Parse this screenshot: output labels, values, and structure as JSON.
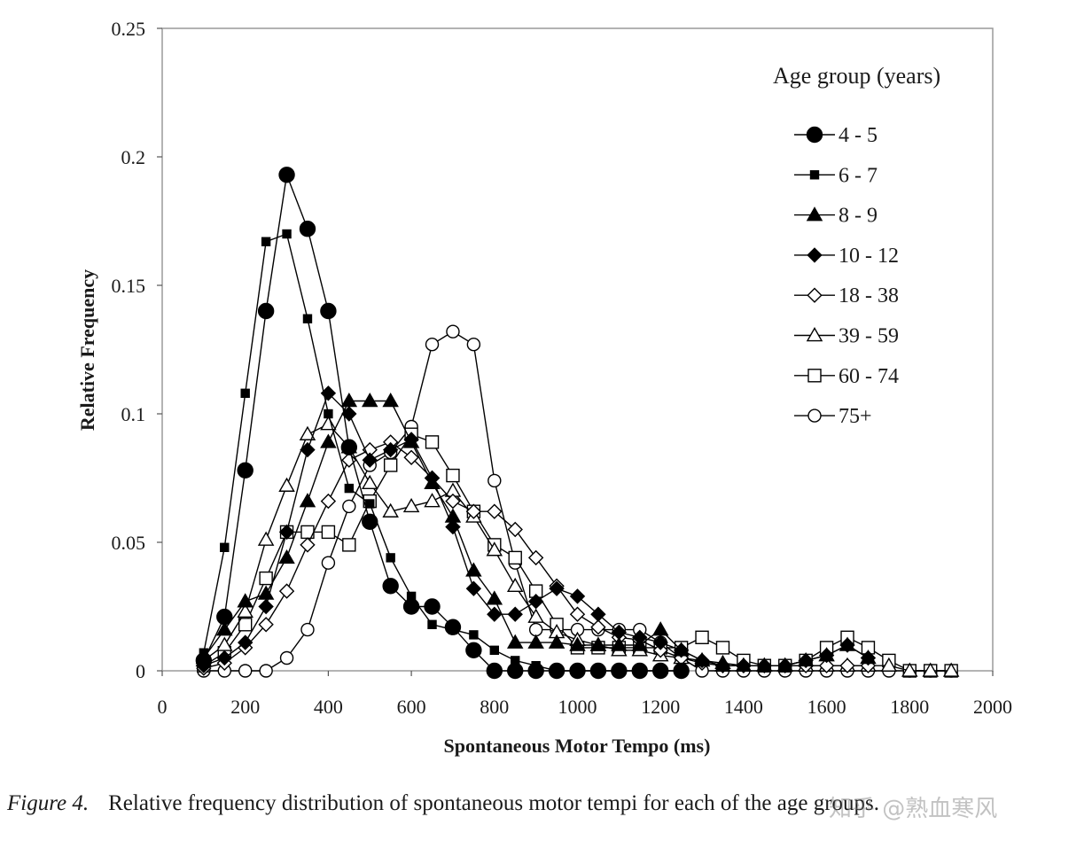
{
  "chart_data": {
    "type": "line",
    "title": "",
    "xlabel": "Spontaneous Motor Tempo (ms)",
    "ylabel": "Relative Frequency",
    "xlim": [
      0,
      2000
    ],
    "ylim": [
      0,
      0.25
    ],
    "xticks": [
      0,
      200,
      400,
      600,
      800,
      1000,
      1200,
      1400,
      1600,
      1800,
      2000
    ],
    "xtick_labels": [
      "0",
      "200",
      "400",
      "600",
      "800",
      "1000",
      "1200",
      "1400",
      "1600",
      "1800",
      "2000"
    ],
    "yticks": [
      0,
      0.05,
      0.1,
      0.15,
      0.2,
      0.25
    ],
    "ytick_labels": [
      "0",
      "0.05",
      "0.1",
      "0.15",
      "0.2",
      "0.25"
    ],
    "grid": false,
    "legend_title": "Age group (years)",
    "legend_position": "top-right",
    "series": [
      {
        "name": "4 - 5",
        "marker": "circle",
        "fill": "filled",
        "size": "large",
        "x": [
          100,
          150,
          200,
          250,
          300,
          350,
          400,
          450,
          500,
          550,
          600,
          650,
          700,
          750,
          800,
          850,
          900,
          950,
          1000,
          1050,
          1100,
          1150,
          1200,
          1250
        ],
        "y": [
          0.004,
          0.021,
          0.078,
          0.14,
          0.193,
          0.172,
          0.14,
          0.087,
          0.058,
          0.033,
          0.025,
          0.025,
          0.017,
          0.008,
          0.0,
          0.0,
          0.0,
          0.0,
          0.0,
          0.0,
          0.0,
          0.0,
          0.0,
          0.0
        ]
      },
      {
        "name": "6 - 7",
        "marker": "square",
        "fill": "filled",
        "size": "small",
        "x": [
          100,
          150,
          200,
          250,
          300,
          350,
          400,
          450,
          500,
          550,
          600,
          650,
          700,
          750,
          800,
          850,
          900,
          950,
          1000,
          1050,
          1100,
          1150,
          1200,
          1250
        ],
        "y": [
          0.007,
          0.048,
          0.108,
          0.167,
          0.17,
          0.137,
          0.1,
          0.071,
          0.065,
          0.044,
          0.029,
          0.018,
          0.016,
          0.014,
          0.008,
          0.004,
          0.002,
          0.0,
          0.0,
          0.0,
          0.0,
          0.0,
          0.0,
          0.0
        ]
      },
      {
        "name": "8 - 9",
        "marker": "triangle",
        "fill": "filled",
        "size": "medium",
        "x": [
          100,
          150,
          200,
          250,
          300,
          350,
          400,
          450,
          500,
          550,
          600,
          650,
          700,
          750,
          800,
          850,
          900,
          950,
          1000,
          1050,
          1100,
          1150,
          1200,
          1250,
          1300,
          1350,
          1400,
          1450,
          1500,
          1550,
          1600,
          1650,
          1700
        ],
        "y": [
          0.005,
          0.016,
          0.027,
          0.03,
          0.044,
          0.066,
          0.089,
          0.105,
          0.105,
          0.105,
          0.089,
          0.073,
          0.06,
          0.039,
          0.028,
          0.011,
          0.011,
          0.011,
          0.01,
          0.01,
          0.01,
          0.01,
          0.016,
          0.008,
          0.004,
          0.002,
          0.002,
          0.002,
          0.002,
          0.004,
          0.006,
          0.01,
          0.005
        ]
      },
      {
        "name": "10 - 12",
        "marker": "diamond",
        "fill": "filled",
        "size": "medium",
        "x": [
          100,
          150,
          200,
          250,
          300,
          350,
          400,
          450,
          500,
          550,
          600,
          650,
          700,
          750,
          800,
          850,
          900,
          950,
          1000,
          1050,
          1100,
          1150,
          1200,
          1250,
          1300,
          1350,
          1400,
          1450,
          1500,
          1550,
          1600,
          1650,
          1700
        ],
        "y": [
          0.002,
          0.005,
          0.011,
          0.025,
          0.054,
          0.086,
          0.108,
          0.1,
          0.082,
          0.086,
          0.09,
          0.075,
          0.056,
          0.032,
          0.022,
          0.022,
          0.027,
          0.032,
          0.029,
          0.022,
          0.015,
          0.013,
          0.011,
          0.008,
          0.004,
          0.002,
          0.002,
          0.002,
          0.002,
          0.004,
          0.006,
          0.01,
          0.005
        ]
      },
      {
        "name": "18 - 38",
        "marker": "diamond",
        "fill": "open",
        "size": "medium",
        "x": [
          100,
          150,
          200,
          250,
          300,
          350,
          400,
          450,
          500,
          550,
          600,
          650,
          700,
          750,
          800,
          850,
          900,
          950,
          1000,
          1050,
          1100,
          1150,
          1200,
          1250,
          1300,
          1350,
          1400,
          1450,
          1500,
          1550,
          1600,
          1650,
          1700
        ],
        "y": [
          0.001,
          0.003,
          0.009,
          0.018,
          0.031,
          0.049,
          0.066,
          0.082,
          0.086,
          0.089,
          0.083,
          0.075,
          0.066,
          0.062,
          0.062,
          0.055,
          0.044,
          0.033,
          0.022,
          0.017,
          0.013,
          0.012,
          0.008,
          0.005,
          0.003,
          0.002,
          0.002,
          0.002,
          0.002,
          0.002,
          0.002,
          0.002,
          0.002
        ]
      },
      {
        "name": "39 - 59",
        "marker": "triangle",
        "fill": "open",
        "size": "medium",
        "x": [
          100,
          150,
          200,
          250,
          300,
          350,
          400,
          450,
          500,
          550,
          600,
          650,
          700,
          750,
          800,
          850,
          900,
          950,
          1000,
          1050,
          1100,
          1150,
          1200,
          1250,
          1300,
          1350,
          1400,
          1450,
          1500,
          1550,
          1600,
          1650,
          1700,
          1750,
          1800,
          1850,
          1900
        ],
        "y": [
          0.004,
          0.01,
          0.023,
          0.051,
          0.072,
          0.092,
          0.096,
          0.087,
          0.073,
          0.062,
          0.064,
          0.066,
          0.07,
          0.06,
          0.047,
          0.033,
          0.021,
          0.015,
          0.012,
          0.01,
          0.008,
          0.008,
          0.006,
          0.005,
          0.004,
          0.003,
          0.002,
          0.002,
          0.002,
          0.002,
          0.002,
          0.002,
          0.002,
          0.002,
          0.0,
          0.0,
          0.0
        ]
      },
      {
        "name": "60 - 74",
        "marker": "square",
        "fill": "open",
        "size": "medium",
        "x": [
          100,
          150,
          200,
          250,
          300,
          350,
          400,
          450,
          500,
          550,
          600,
          650,
          700,
          750,
          800,
          850,
          900,
          950,
          1000,
          1050,
          1100,
          1150,
          1200,
          1250,
          1300,
          1350,
          1400,
          1450,
          1500,
          1550,
          1600,
          1650,
          1700,
          1750,
          1800,
          1850,
          1900
        ],
        "y": [
          0.002,
          0.007,
          0.018,
          0.036,
          0.054,
          0.054,
          0.054,
          0.049,
          0.066,
          0.08,
          0.092,
          0.089,
          0.076,
          0.062,
          0.049,
          0.044,
          0.031,
          0.018,
          0.009,
          0.009,
          0.009,
          0.009,
          0.009,
          0.009,
          0.013,
          0.009,
          0.004,
          0.002,
          0.002,
          0.004,
          0.009,
          0.013,
          0.009,
          0.004,
          0.0,
          0.0,
          0.0
        ]
      },
      {
        "name": "75+",
        "marker": "circle",
        "fill": "open",
        "size": "medium",
        "x": [
          100,
          150,
          200,
          250,
          300,
          350,
          400,
          450,
          500,
          550,
          600,
          650,
          700,
          750,
          800,
          850,
          900,
          950,
          1000,
          1050,
          1100,
          1150,
          1200,
          1250,
          1300,
          1350,
          1400,
          1450,
          1500,
          1550,
          1600,
          1650,
          1700,
          1750,
          1800,
          1850,
          1900
        ],
        "y": [
          0.0,
          0.0,
          0.0,
          0.0,
          0.005,
          0.016,
          0.042,
          0.064,
          0.08,
          0.085,
          0.095,
          0.127,
          0.132,
          0.127,
          0.074,
          0.042,
          0.016,
          0.016,
          0.016,
          0.016,
          0.016,
          0.016,
          0.011,
          0.005,
          0.0,
          0.0,
          0.0,
          0.0,
          0.0,
          0.0,
          0.0,
          0.0,
          0.0,
          0.0,
          0.0,
          0.0,
          0.0
        ]
      }
    ]
  },
  "caption": {
    "figure_label": "Figure 4.",
    "text": "Relative frequency distribution of spontaneous motor tempi for each of the age groups."
  },
  "watermark": {
    "text": "知乎 @熟血寒风"
  }
}
